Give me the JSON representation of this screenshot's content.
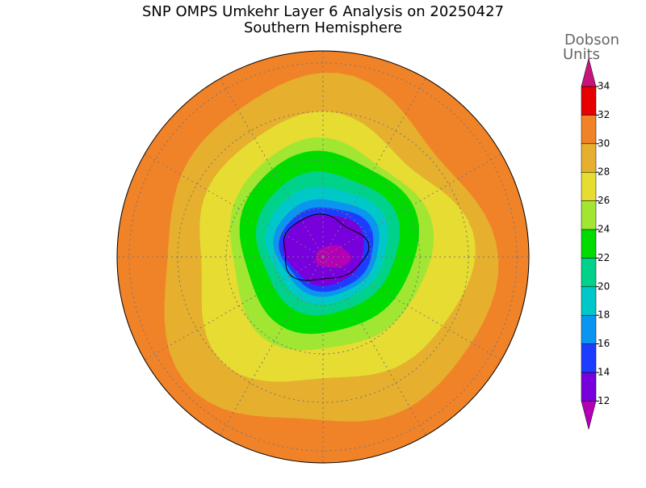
{
  "title": "SNP OMPS Umkehr Layer 6 Analysis on 20250427",
  "subtitle": "Southern Hemisphere",
  "colorbar": {
    "label": [
      "Dobson",
      "Units"
    ],
    "ticks": [
      12,
      14,
      16,
      18,
      20,
      22,
      24,
      26,
      28,
      30,
      32,
      34
    ],
    "colors": [
      "#b400b4",
      "#7800dc",
      "#1e3cff",
      "#0a96f0",
      "#00c8c8",
      "#00d28c",
      "#00dc00",
      "#a0e632",
      "#e6dc32",
      "#e6af2d",
      "#f08228",
      "#e60000",
      "#c8147a"
    ]
  }
}
